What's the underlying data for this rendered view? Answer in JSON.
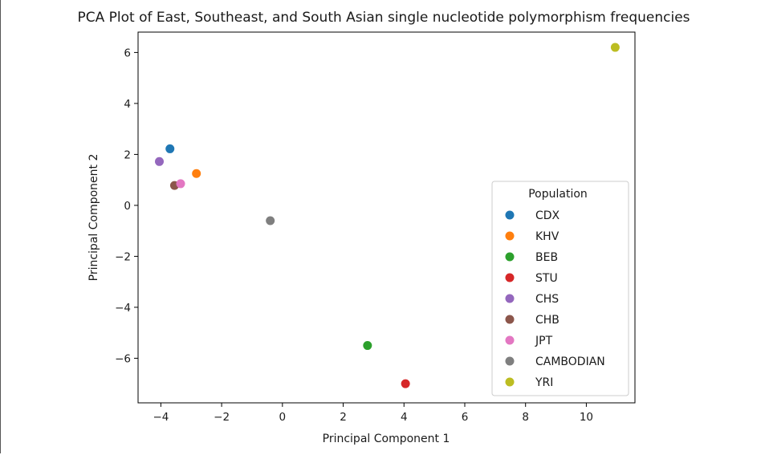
{
  "chart_data": {
    "type": "scatter",
    "title": "PCA Plot of East, Southeast, and South Asian single nucleotide polymorphism frequencies",
    "xlabel": "Principal Component 1",
    "ylabel": "Principal Component 2",
    "xlim": [
      -4.75,
      11.6
    ],
    "ylim": [
      -7.75,
      6.8
    ],
    "xticks": [
      -4,
      -2,
      0,
      2,
      4,
      6,
      8,
      10
    ],
    "yticks": [
      -6,
      -4,
      -2,
      0,
      2,
      4,
      6
    ],
    "grid": false,
    "legend": {
      "title": "Population",
      "placement": "lower-right"
    },
    "series": [
      {
        "name": "CDX",
        "color": "#1f77b4",
        "x": -3.7,
        "y": 2.22
      },
      {
        "name": "KHV",
        "color": "#ff7f0e",
        "x": -2.83,
        "y": 1.25
      },
      {
        "name": "BEB",
        "color": "#2ca02c",
        "x": 2.8,
        "y": -5.5
      },
      {
        "name": "STU",
        "color": "#d62728",
        "x": 4.05,
        "y": -7.0
      },
      {
        "name": "CHS",
        "color": "#9467bd",
        "x": -4.05,
        "y": 1.72
      },
      {
        "name": "CHB",
        "color": "#8c564b",
        "x": -3.55,
        "y": 0.78
      },
      {
        "name": "JPT",
        "color": "#e377c2",
        "x": -3.35,
        "y": 0.85
      },
      {
        "name": "CAMBODIAN",
        "color": "#7f7f7f",
        "x": -0.4,
        "y": -0.6
      },
      {
        "name": "YRI",
        "color": "#bcbd22",
        "x": 10.95,
        "y": 6.2
      }
    ]
  }
}
